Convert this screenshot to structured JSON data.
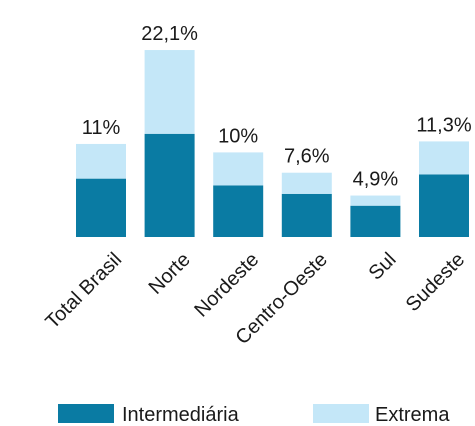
{
  "chart_data": {
    "type": "stacked_bar",
    "categories": [
      "Total Brasil",
      "Norte",
      "Nordeste",
      "Centro-Oeste",
      "Sul",
      "Sudeste"
    ],
    "series": [
      {
        "name": "Intermediária",
        "color": "#0a7ba3",
        "values": [
          6.9,
          12.2,
          6.1,
          5.1,
          3.7,
          7.4
        ]
      },
      {
        "name": "Extrema",
        "color": "#c4e7f8",
        "values": [
          4.1,
          9.9,
          3.9,
          2.5,
          1.2,
          3.9
        ]
      }
    ],
    "totals": [
      11,
      22.1,
      10,
      7.6,
      4.9,
      11.3
    ],
    "total_labels": [
      "11%",
      "22,1%",
      "10%",
      "7,6%",
      "4,9%",
      "11,3%"
    ],
    "legend": "bottom"
  }
}
